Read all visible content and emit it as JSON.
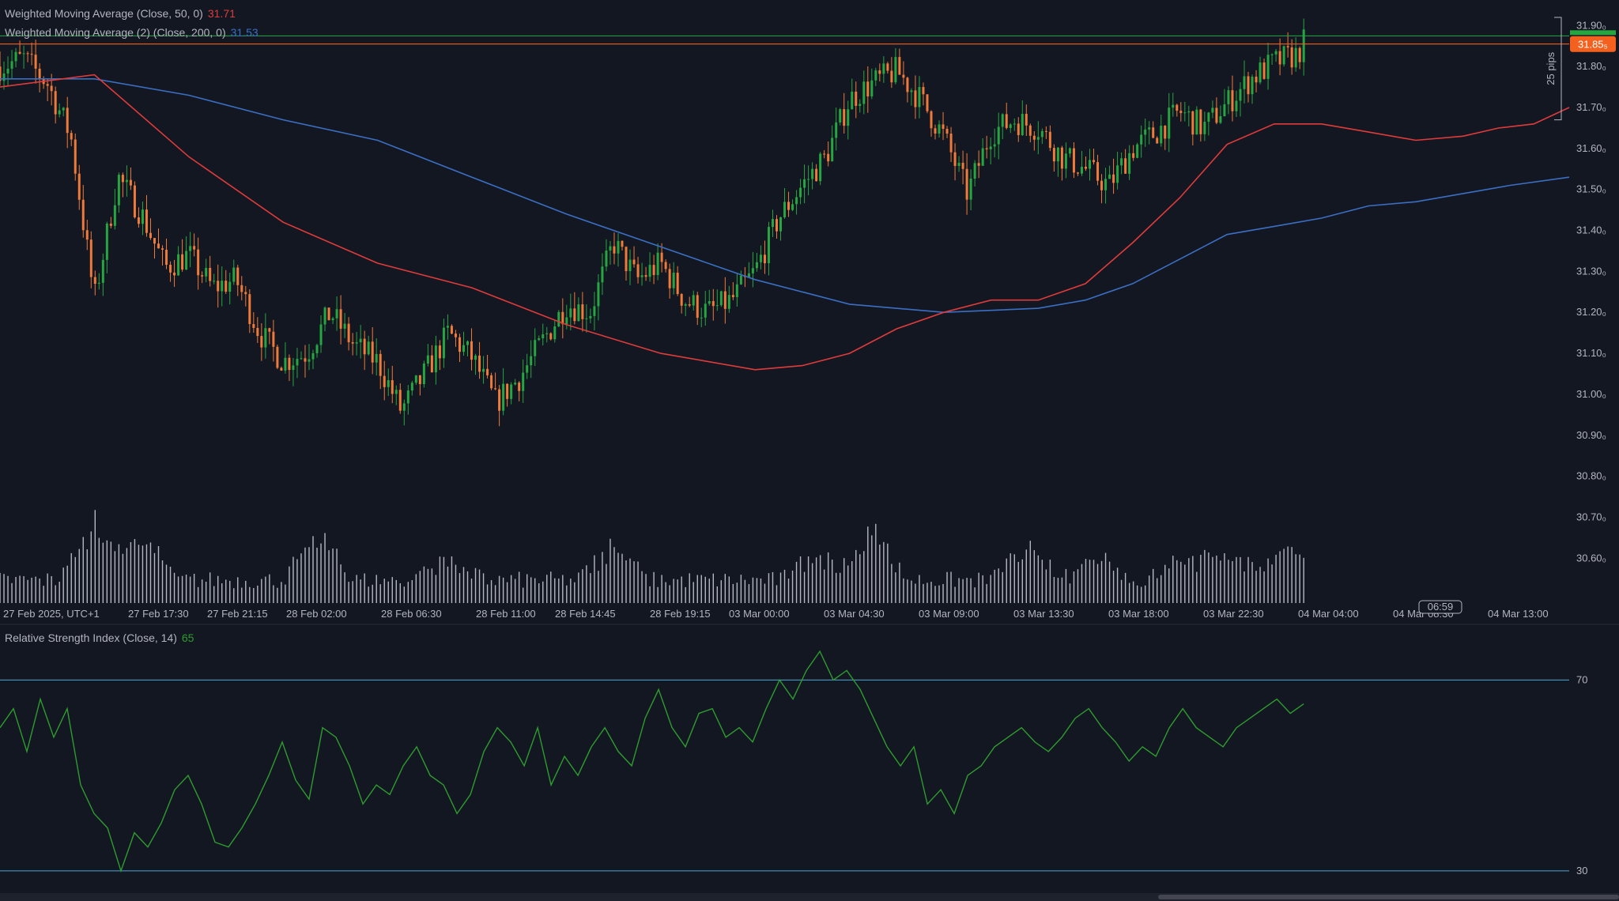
{
  "indicators": {
    "wma50": {
      "label": "Weighted Moving Average (Close, 50, 0)",
      "value": "31.71",
      "color": "#e03b3b"
    },
    "wma200": {
      "label": "Weighted Moving Average (2) (Close, 200, 0)",
      "value": "31.53",
      "color": "#3b6fc4"
    },
    "rsi": {
      "label": "Relative Strength Index (Close, 14)",
      "value": "65",
      "color": "#2e9c2e"
    }
  },
  "price_axis": {
    "ticks": [
      "31.90₀",
      "31.80₀",
      "31.70₀",
      "31.60₀",
      "31.50₀",
      "31.40₀",
      "31.30₀",
      "31.20₀",
      "31.10₀",
      "31.00₀",
      "30.90₀",
      "30.80₀",
      "30.70₀",
      "30.60₀"
    ],
    "tick_values": [
      31.9,
      31.8,
      31.7,
      31.6,
      31.5,
      31.4,
      31.3,
      31.2,
      31.1,
      31.0,
      30.9,
      30.8,
      30.7,
      30.6
    ],
    "current_price_label": "31.85₅",
    "current_price": 31.855,
    "current_price_color": "#f4611f",
    "range_label": "25 pips",
    "range_top": 31.92,
    "range_bottom": 31.67
  },
  "time_axis": {
    "labels": [
      "27 Feb 2025, UTC+1",
      "27 Feb 17:30",
      "27 Feb 21:15",
      "28 Feb 02:00",
      "28 Feb 06:30",
      "28 Feb 11:00",
      "28 Feb 14:45",
      "28 Feb 19:15",
      "03 Mar 00:00",
      "03 Mar 04:30",
      "03 Mar 09:00",
      "03 Mar 13:30",
      "03 Mar 18:00",
      "03 Mar 22:30",
      "04 Mar 04:00",
      "04 Mar 08:30",
      "04 Mar 13:00"
    ],
    "countdown": "06:59"
  },
  "rsi_axis": {
    "ticks": [
      "70",
      "30"
    ],
    "levels": [
      70,
      30
    ]
  },
  "colors": {
    "background": "#131722",
    "up": "#26a641",
    "down": "#f07a3a",
    "volume": "#d1d4dc",
    "rsi_band": "#4aa8d8",
    "grid_text": "#b2b5be"
  },
  "chart_data": [
    {
      "type": "candlestick",
      "title": "",
      "ylim": [
        30.56,
        31.92
      ],
      "bars": 330,
      "close_anchors": [
        [
          0,
          31.8
        ],
        [
          20,
          31.82
        ],
        [
          40,
          31.76
        ],
        [
          60,
          31.63
        ],
        [
          80,
          31.23
        ],
        [
          100,
          31.53
        ],
        [
          120,
          31.44
        ],
        [
          140,
          31.31
        ],
        [
          160,
          31.34
        ],
        [
          180,
          31.26
        ],
        [
          200,
          31.28
        ],
        [
          220,
          31.15
        ],
        [
          240,
          31.08
        ],
        [
          260,
          31.1
        ],
        [
          280,
          31.2
        ],
        [
          300,
          31.12
        ],
        [
          320,
          31.08
        ],
        [
          340,
          30.96
        ],
        [
          360,
          31.05
        ],
        [
          380,
          31.15
        ],
        [
          400,
          31.09
        ],
        [
          420,
          30.98
        ],
        [
          440,
          31.04
        ],
        [
          460,
          31.13
        ],
        [
          480,
          31.22
        ],
        [
          500,
          31.2
        ],
        [
          520,
          31.37
        ],
        [
          540,
          31.28
        ],
        [
          560,
          31.32
        ],
        [
          580,
          31.23
        ],
        [
          600,
          31.2
        ],
        [
          620,
          31.23
        ],
        [
          640,
          31.3
        ],
        [
          660,
          31.43
        ],
        [
          680,
          31.51
        ],
        [
          700,
          31.58
        ],
        [
          720,
          31.72
        ],
        [
          740,
          31.76
        ],
        [
          760,
          31.79
        ],
        [
          780,
          31.72
        ],
        [
          800,
          31.63
        ],
        [
          820,
          31.49
        ],
        [
          840,
          31.64
        ],
        [
          860,
          31.67
        ],
        [
          880,
          31.65
        ],
        [
          900,
          31.58
        ],
        [
          920,
          31.55
        ],
        [
          940,
          31.51
        ],
        [
          960,
          31.6
        ],
        [
          980,
          31.64
        ],
        [
          1000,
          31.69
        ],
        [
          1020,
          31.65
        ],
        [
          1040,
          31.71
        ],
        [
          1060,
          31.77
        ],
        [
          1080,
          31.81
        ],
        [
          1100,
          31.83
        ],
        [
          1105,
          31.86
        ]
      ],
      "wma50": [
        [
          0,
          31.75
        ],
        [
          80,
          31.78
        ],
        [
          160,
          31.58
        ],
        [
          240,
          31.42
        ],
        [
          320,
          31.32
        ],
        [
          400,
          31.26
        ],
        [
          480,
          31.17
        ],
        [
          560,
          31.1
        ],
        [
          640,
          31.06
        ],
        [
          680,
          31.07
        ],
        [
          720,
          31.1
        ],
        [
          760,
          31.16
        ],
        [
          800,
          31.2
        ],
        [
          840,
          31.23
        ],
        [
          880,
          31.23
        ],
        [
          920,
          31.27
        ],
        [
          960,
          31.37
        ],
        [
          1000,
          31.48
        ],
        [
          1040,
          31.61
        ],
        [
          1080,
          31.66
        ],
        [
          1120,
          31.66
        ],
        [
          1160,
          31.64
        ],
        [
          1200,
          31.62
        ],
        [
          1240,
          31.63
        ],
        [
          1270,
          31.65
        ],
        [
          1300,
          31.66
        ],
        [
          1330,
          31.7
        ]
      ],
      "wma200": [
        [
          0,
          31.77
        ],
        [
          80,
          31.77
        ],
        [
          160,
          31.73
        ],
        [
          240,
          31.67
        ],
        [
          320,
          31.62
        ],
        [
          400,
          31.53
        ],
        [
          480,
          31.44
        ],
        [
          560,
          31.36
        ],
        [
          640,
          31.28
        ],
        [
          720,
          31.22
        ],
        [
          800,
          31.2
        ],
        [
          880,
          31.21
        ],
        [
          920,
          31.23
        ],
        [
          960,
          31.27
        ],
        [
          1000,
          31.33
        ],
        [
          1040,
          31.39
        ],
        [
          1080,
          31.41
        ],
        [
          1120,
          31.43
        ],
        [
          1160,
          31.46
        ],
        [
          1200,
          31.47
        ],
        [
          1240,
          31.49
        ],
        [
          1280,
          31.51
        ],
        [
          1330,
          31.53
        ]
      ],
      "volume_pattern": "relative volume bars, higher near session opens"
    },
    {
      "type": "line",
      "title": "",
      "ylim": [
        26,
        80
      ],
      "series": [
        {
          "values": [
            60,
            64,
            55,
            66,
            58,
            64,
            48,
            42,
            39,
            30,
            38,
            35,
            40,
            47,
            50,
            44,
            36,
            35,
            39,
            44,
            50,
            57,
            49,
            45,
            60,
            58,
            52,
            44,
            48,
            46,
            52,
            56,
            50,
            48,
            42,
            46,
            55,
            60,
            57,
            52,
            60,
            48,
            54,
            50,
            56,
            60,
            55,
            52,
            62,
            68,
            60,
            56,
            63,
            64,
            58,
            60,
            57,
            64,
            70,
            66,
            72,
            76,
            70,
            72,
            68,
            62,
            56,
            52,
            56,
            44,
            47,
            42,
            50,
            52,
            56,
            58,
            60,
            57,
            55,
            58,
            62,
            64,
            60,
            57,
            53,
            56,
            54,
            60,
            64,
            60,
            58,
            56,
            60,
            62,
            64,
            66,
            63,
            65
          ]
        }
      ]
    }
  ]
}
